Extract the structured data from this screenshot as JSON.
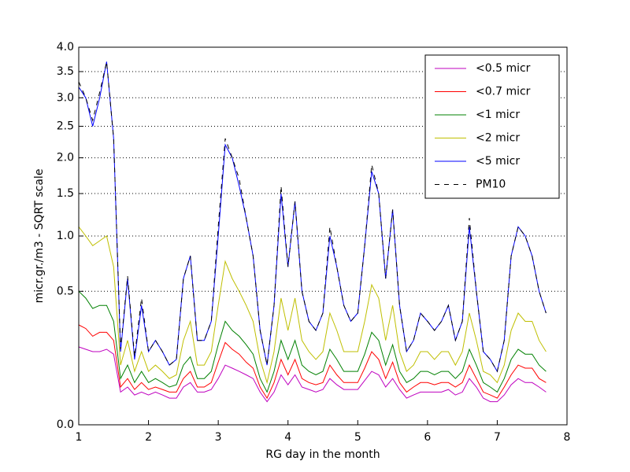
{
  "chart_data": {
    "type": "line",
    "xlabel": "RG day in the month",
    "ylabel": "micr.gr./m3 - SQRT scale",
    "yscale": "sqrt",
    "grid": true,
    "legend": "upper right",
    "xlim": [
      1,
      8
    ],
    "xticks": [
      1,
      2,
      3,
      4,
      5,
      6,
      7,
      8
    ],
    "ylim": [
      0,
      4
    ],
    "yticks": [
      {
        "value": 0,
        "label": "0.0"
      },
      0.5,
      {
        "value": 1,
        "label": "1.0"
      },
      1.5,
      {
        "value": 2,
        "label": "2.0"
      },
      2.5,
      {
        "value": 3,
        "label": "3.0"
      },
      3.5,
      {
        "value": 4,
        "label": "4.0"
      }
    ],
    "x": [
      1.0,
      1.1,
      1.2,
      1.3,
      1.4,
      1.5,
      1.6,
      1.7,
      1.8,
      1.9,
      2.0,
      2.1,
      2.2,
      2.3,
      2.4,
      2.5,
      2.6,
      2.7,
      2.8,
      2.9,
      3.0,
      3.1,
      3.2,
      3.3,
      3.4,
      3.5,
      3.6,
      3.7,
      3.8,
      3.9,
      4.0,
      4.1,
      4.2,
      4.3,
      4.4,
      4.5,
      4.6,
      4.7,
      4.8,
      4.9,
      5.0,
      5.1,
      5.2,
      5.3,
      5.4,
      5.5,
      5.6,
      5.7,
      5.8,
      5.9,
      6.0,
      6.1,
      6.2,
      6.3,
      6.4,
      6.5,
      6.6,
      6.7,
      6.8,
      6.9,
      7.0,
      7.1,
      7.2,
      7.3,
      7.4,
      7.5,
      7.6,
      7.7
    ],
    "series": [
      {
        "name": "<0.5 micr",
        "color": "#bf00bf",
        "dash": false,
        "values": [
          0.17,
          0.16,
          0.15,
          0.15,
          0.16,
          0.14,
          0.03,
          0.04,
          0.025,
          0.03,
          0.025,
          0.03,
          0.025,
          0.02,
          0.02,
          0.04,
          0.05,
          0.03,
          0.03,
          0.035,
          0.06,
          0.1,
          0.09,
          0.08,
          0.07,
          0.06,
          0.03,
          0.015,
          0.03,
          0.07,
          0.045,
          0.07,
          0.04,
          0.035,
          0.03,
          0.035,
          0.06,
          0.045,
          0.035,
          0.035,
          0.035,
          0.055,
          0.08,
          0.07,
          0.04,
          0.06,
          0.035,
          0.02,
          0.025,
          0.03,
          0.03,
          0.03,
          0.03,
          0.035,
          0.025,
          0.03,
          0.06,
          0.04,
          0.02,
          0.015,
          0.015,
          0.025,
          0.045,
          0.06,
          0.05,
          0.05,
          0.04,
          0.03
        ]
      },
      {
        "name": "<0.7 micr",
        "color": "#ff0000",
        "dash": false,
        "values": [
          0.28,
          0.26,
          0.22,
          0.24,
          0.24,
          0.2,
          0.04,
          0.06,
          0.035,
          0.05,
          0.035,
          0.04,
          0.035,
          0.03,
          0.03,
          0.06,
          0.08,
          0.04,
          0.04,
          0.05,
          0.11,
          0.19,
          0.16,
          0.14,
          0.11,
          0.09,
          0.04,
          0.02,
          0.05,
          0.12,
          0.07,
          0.12,
          0.06,
          0.05,
          0.045,
          0.05,
          0.1,
          0.07,
          0.05,
          0.05,
          0.05,
          0.09,
          0.15,
          0.12,
          0.06,
          0.11,
          0.05,
          0.03,
          0.04,
          0.05,
          0.05,
          0.045,
          0.05,
          0.05,
          0.04,
          0.05,
          0.1,
          0.06,
          0.03,
          0.025,
          0.02,
          0.04,
          0.07,
          0.1,
          0.09,
          0.09,
          0.06,
          0.05
        ]
      },
      {
        "name": "<1 micr",
        "color": "#008000",
        "dash": false,
        "values": [
          0.5,
          0.45,
          0.38,
          0.4,
          0.4,
          0.3,
          0.06,
          0.1,
          0.05,
          0.08,
          0.05,
          0.06,
          0.05,
          0.04,
          0.045,
          0.1,
          0.13,
          0.06,
          0.06,
          0.08,
          0.18,
          0.3,
          0.25,
          0.22,
          0.18,
          0.14,
          0.06,
          0.03,
          0.08,
          0.2,
          0.12,
          0.2,
          0.1,
          0.08,
          0.07,
          0.08,
          0.16,
          0.12,
          0.08,
          0.08,
          0.08,
          0.14,
          0.24,
          0.2,
          0.1,
          0.18,
          0.08,
          0.05,
          0.06,
          0.08,
          0.08,
          0.07,
          0.08,
          0.08,
          0.06,
          0.08,
          0.16,
          0.1,
          0.05,
          0.04,
          0.03,
          0.06,
          0.12,
          0.16,
          0.14,
          0.14,
          0.1,
          0.08
        ]
      },
      {
        "name": "<2 micr",
        "color": "#bfbf00",
        "dash": false,
        "values": [
          1.1,
          1.0,
          0.9,
          0.95,
          1.0,
          0.7,
          0.1,
          0.2,
          0.08,
          0.15,
          0.08,
          0.1,
          0.08,
          0.06,
          0.07,
          0.2,
          0.3,
          0.1,
          0.1,
          0.15,
          0.4,
          0.75,
          0.6,
          0.5,
          0.4,
          0.3,
          0.12,
          0.05,
          0.15,
          0.45,
          0.25,
          0.45,
          0.2,
          0.15,
          0.12,
          0.15,
          0.35,
          0.25,
          0.15,
          0.15,
          0.15,
          0.3,
          0.55,
          0.45,
          0.2,
          0.4,
          0.15,
          0.08,
          0.1,
          0.15,
          0.15,
          0.12,
          0.15,
          0.15,
          0.1,
          0.15,
          0.35,
          0.2,
          0.08,
          0.07,
          0.05,
          0.1,
          0.25,
          0.35,
          0.3,
          0.3,
          0.2,
          0.15
        ]
      },
      {
        "name": "<5 micr",
        "color": "#0000ff",
        "dash": false,
        "values": [
          3.2,
          3.0,
          2.5,
          3.0,
          3.7,
          2.3,
          0.15,
          0.6,
          0.12,
          0.4,
          0.15,
          0.2,
          0.15,
          0.1,
          0.12,
          0.6,
          0.8,
          0.2,
          0.2,
          0.3,
          1.0,
          2.2,
          2.0,
          1.6,
          1.2,
          0.8,
          0.25,
          0.1,
          0.4,
          1.5,
          0.7,
          1.4,
          0.5,
          0.3,
          0.25,
          0.35,
          1.0,
          0.7,
          0.4,
          0.3,
          0.35,
          0.9,
          1.8,
          1.5,
          0.6,
          1.3,
          0.4,
          0.15,
          0.2,
          0.35,
          0.3,
          0.25,
          0.3,
          0.4,
          0.2,
          0.3,
          1.1,
          0.5,
          0.15,
          0.12,
          0.08,
          0.2,
          0.8,
          1.1,
          1.0,
          0.8,
          0.5,
          0.35
        ]
      },
      {
        "name": "PM10",
        "color": "#000000",
        "dash": true,
        "values": [
          3.3,
          3.0,
          2.6,
          3.1,
          3.7,
          2.3,
          0.16,
          0.62,
          0.13,
          0.45,
          0.15,
          0.2,
          0.15,
          0.1,
          0.12,
          0.6,
          0.8,
          0.2,
          0.2,
          0.3,
          1.1,
          2.3,
          2.0,
          1.7,
          1.2,
          0.8,
          0.25,
          0.1,
          0.4,
          1.6,
          0.7,
          1.4,
          0.5,
          0.3,
          0.25,
          0.35,
          1.1,
          0.7,
          0.4,
          0.3,
          0.35,
          0.9,
          1.9,
          1.5,
          0.6,
          1.3,
          0.4,
          0.15,
          0.2,
          0.35,
          0.3,
          0.25,
          0.3,
          0.4,
          0.2,
          0.3,
          1.2,
          0.5,
          0.15,
          0.12,
          0.08,
          0.2,
          0.8,
          1.1,
          1.0,
          0.8,
          0.5,
          0.35
        ]
      }
    ]
  }
}
